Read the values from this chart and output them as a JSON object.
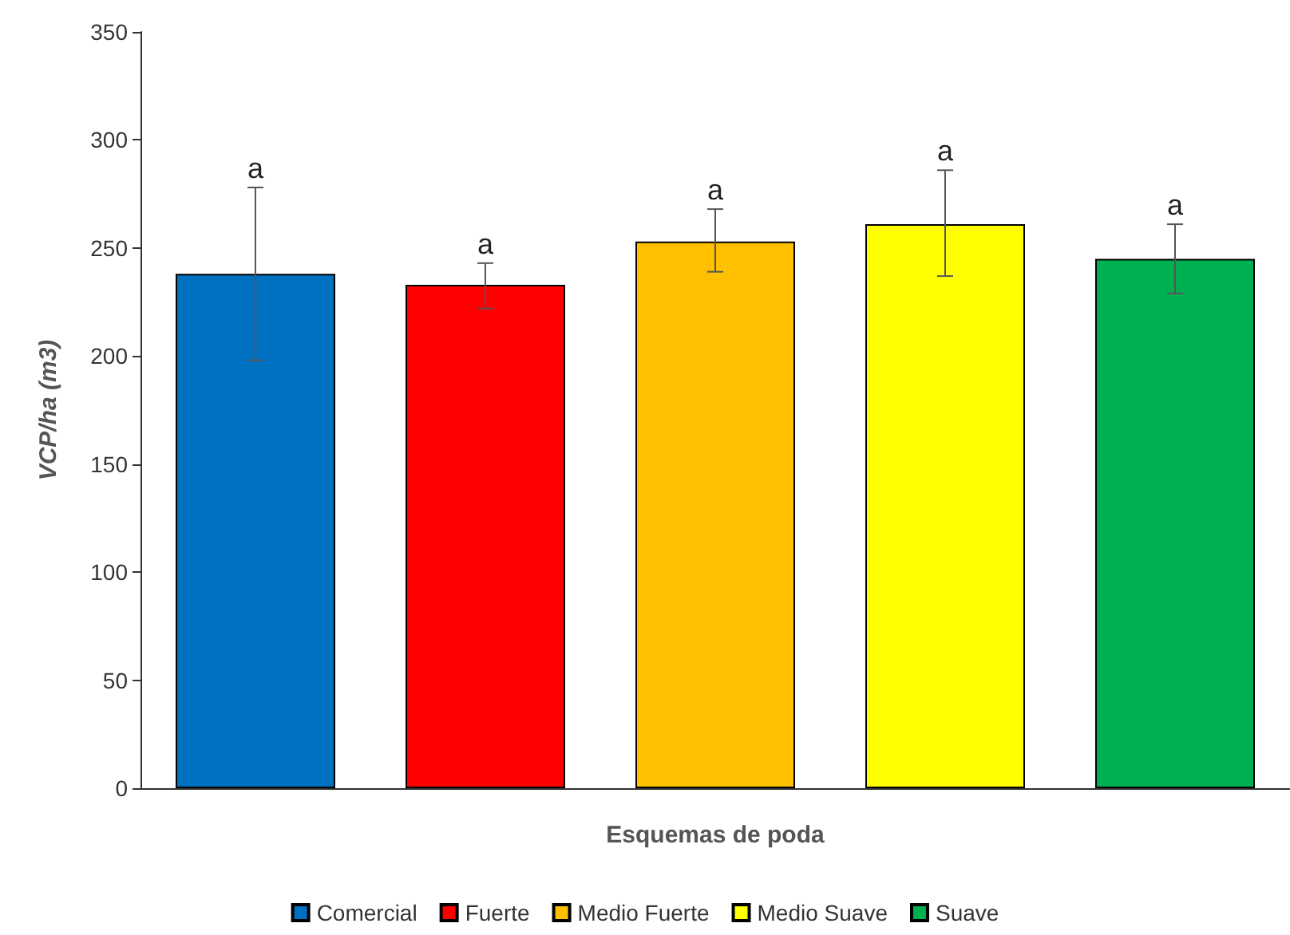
{
  "chart_data": {
    "type": "bar",
    "xlabel": "Esquemas de poda",
    "ylabel": "VCP/ha (m3)",
    "categories": [
      null,
      null,
      null,
      null,
      null
    ],
    "series": [
      {
        "name": "Comercial",
        "color": "#0070c0",
        "values": [
          238,
          null,
          null,
          null,
          null
        ],
        "errors": [
          [
            198,
            278
          ],
          null,
          null,
          null,
          null
        ]
      },
      {
        "name": "Fuerte",
        "color": "#ff0000",
        "values": [
          null,
          233,
          null,
          null,
          null
        ],
        "errors": [
          null,
          [
            222,
            243
          ],
          null,
          null,
          null
        ]
      },
      {
        "name": "Medio Fuerte",
        "color": "#ffc000",
        "values": [
          null,
          null,
          253,
          null,
          null
        ],
        "errors": [
          null,
          null,
          [
            239,
            268
          ],
          null,
          null
        ]
      },
      {
        "name": "Medio Suave",
        "color": "#ffff00",
        "values": [
          null,
          null,
          null,
          261,
          null
        ],
        "errors": [
          null,
          null,
          null,
          [
            237,
            286
          ],
          null
        ]
      },
      {
        "name": "Suave",
        "color": "#00b050",
        "values": [
          null,
          null,
          null,
          null,
          245
        ],
        "errors": [
          null,
          null,
          null,
          null,
          [
            229,
            261
          ]
        ]
      }
    ],
    "annotations": [
      {
        "text": "a",
        "y": 278
      },
      {
        "text": "a",
        "y": 243
      },
      {
        "text": "a",
        "y": 268
      },
      {
        "text": "a",
        "y": 286
      },
      {
        "text": "a",
        "y": 261
      }
    ],
    "ylim": [
      0,
      350
    ],
    "yticks": [
      0,
      50,
      100,
      150,
      200,
      250,
      300,
      350
    ],
    "grid": false,
    "legend": "bottom"
  }
}
